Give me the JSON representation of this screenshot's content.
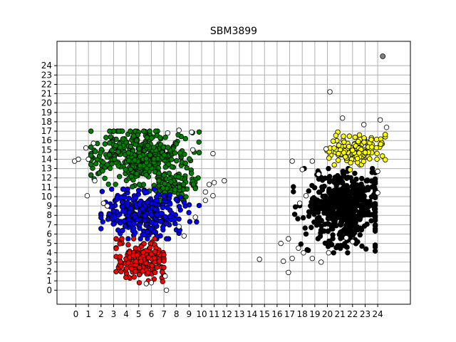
{
  "chart_data": {
    "type": "scatter",
    "title": "SBM3899",
    "xlabel": "",
    "ylabel": "",
    "xlim": [
      -1.5,
      26.6
    ],
    "ylim": [
      -1.5,
      26.6
    ],
    "xticks": [
      0,
      1,
      2,
      3,
      4,
      5,
      6,
      7,
      8,
      9,
      10,
      11,
      12,
      13,
      14,
      15,
      16,
      17,
      18,
      19,
      20,
      21,
      22,
      23,
      24
    ],
    "yticks": [
      0,
      1,
      2,
      3,
      4,
      5,
      6,
      7,
      8,
      9,
      10,
      11,
      12,
      13,
      14,
      15,
      16,
      17,
      18,
      19,
      20,
      21,
      22,
      23,
      24
    ],
    "grid": true,
    "clusters": [
      {
        "color": "#008000",
        "center": [
          5.0,
          14.2
        ],
        "spread": [
          1.9,
          1.5
        ],
        "count": 420,
        "xrange": [
          1.2,
          9.8
        ],
        "yrange": [
          10.6,
          17.0
        ]
      },
      {
        "color": "#008000",
        "center": [
          7.8,
          11.2
        ],
        "spread": [
          1.1,
          0.8
        ],
        "count": 90,
        "xrange": [
          6.6,
          9.5
        ],
        "yrange": [
          9.5,
          12.5
        ]
      },
      {
        "color": "#0000ff",
        "center": [
          5.2,
          8.2
        ],
        "spread": [
          1.6,
          1.3
        ],
        "count": 330,
        "xrange": [
          2.0,
          9.8
        ],
        "yrange": [
          5.5,
          10.8
        ]
      },
      {
        "color": "#ff0000",
        "center": [
          5.2,
          3.2
        ],
        "spread": [
          1.0,
          1.1
        ],
        "count": 180,
        "xrange": [
          3.2,
          7.0
        ],
        "yrange": [
          0.8,
          5.5
        ]
      },
      {
        "color": "#000000",
        "center": [
          21.3,
          8.8
        ],
        "spread": [
          1.5,
          1.9
        ],
        "count": 520,
        "xrange": [
          17.3,
          23.8
        ],
        "yrange": [
          4.0,
          13.0
        ]
      },
      {
        "color": "#ffff00",
        "center": [
          22.3,
          15.0
        ],
        "spread": [
          1.1,
          0.8
        ],
        "count": 130,
        "xrange": [
          19.8,
          24.6
        ],
        "yrange": [
          12.8,
          16.9
        ]
      }
    ],
    "outliers": {
      "color": "#ffffff",
      "points": [
        [
          -0.1,
          13.8
        ],
        [
          0.2,
          14.0
        ],
        [
          1.0,
          14.0
        ],
        [
          0.8,
          15.2
        ],
        [
          1.4,
          15.7
        ],
        [
          0.9,
          10.1
        ],
        [
          1.5,
          11.7
        ],
        [
          2.2,
          9.3
        ],
        [
          2.5,
          9.0
        ],
        [
          7.3,
          16.8
        ],
        [
          8.2,
          17.1
        ],
        [
          9.2,
          16.9
        ],
        [
          9.3,
          15.0
        ],
        [
          10.9,
          14.6
        ],
        [
          10.3,
          10.5
        ],
        [
          10.6,
          11.3
        ],
        [
          11.0,
          11.5
        ],
        [
          11.8,
          11.7
        ],
        [
          10.3,
          9.6
        ],
        [
          10.9,
          10.1
        ],
        [
          9.5,
          7.8
        ],
        [
          8.2,
          6.8
        ],
        [
          8.6,
          5.8
        ],
        [
          7.1,
          1.5
        ],
        [
          7.2,
          0.0
        ],
        [
          6.0,
          0.8
        ],
        [
          5.6,
          0.7
        ],
        [
          14.6,
          3.3
        ],
        [
          16.5,
          3.1
        ],
        [
          16.3,
          5.0
        ],
        [
          16.9,
          1.9
        ],
        [
          17.2,
          3.4
        ],
        [
          17.7,
          4.5
        ],
        [
          18.1,
          4.0
        ],
        [
          17.8,
          9.3
        ],
        [
          18.3,
          10.1
        ],
        [
          18.0,
          12.9
        ],
        [
          17.2,
          13.8
        ],
        [
          18.8,
          13.8
        ],
        [
          19.3,
          12.4
        ],
        [
          19.9,
          15.1
        ],
        [
          20.2,
          21.2
        ],
        [
          20.1,
          4.0
        ],
        [
          19.5,
          3.0
        ],
        [
          21.5,
          5.6
        ],
        [
          22.0,
          5.2
        ],
        [
          21.2,
          18.4
        ],
        [
          22.9,
          17.7
        ],
        [
          24.2,
          18.2
        ],
        [
          24.7,
          17.4
        ],
        [
          24.0,
          12.7
        ],
        [
          24.0,
          10.4
        ],
        [
          18.8,
          3.4
        ],
        [
          16.9,
          5.5
        ]
      ]
    },
    "special_points": [
      {
        "x": 24.4,
        "y": 25.0,
        "color": "#808080"
      }
    ]
  }
}
